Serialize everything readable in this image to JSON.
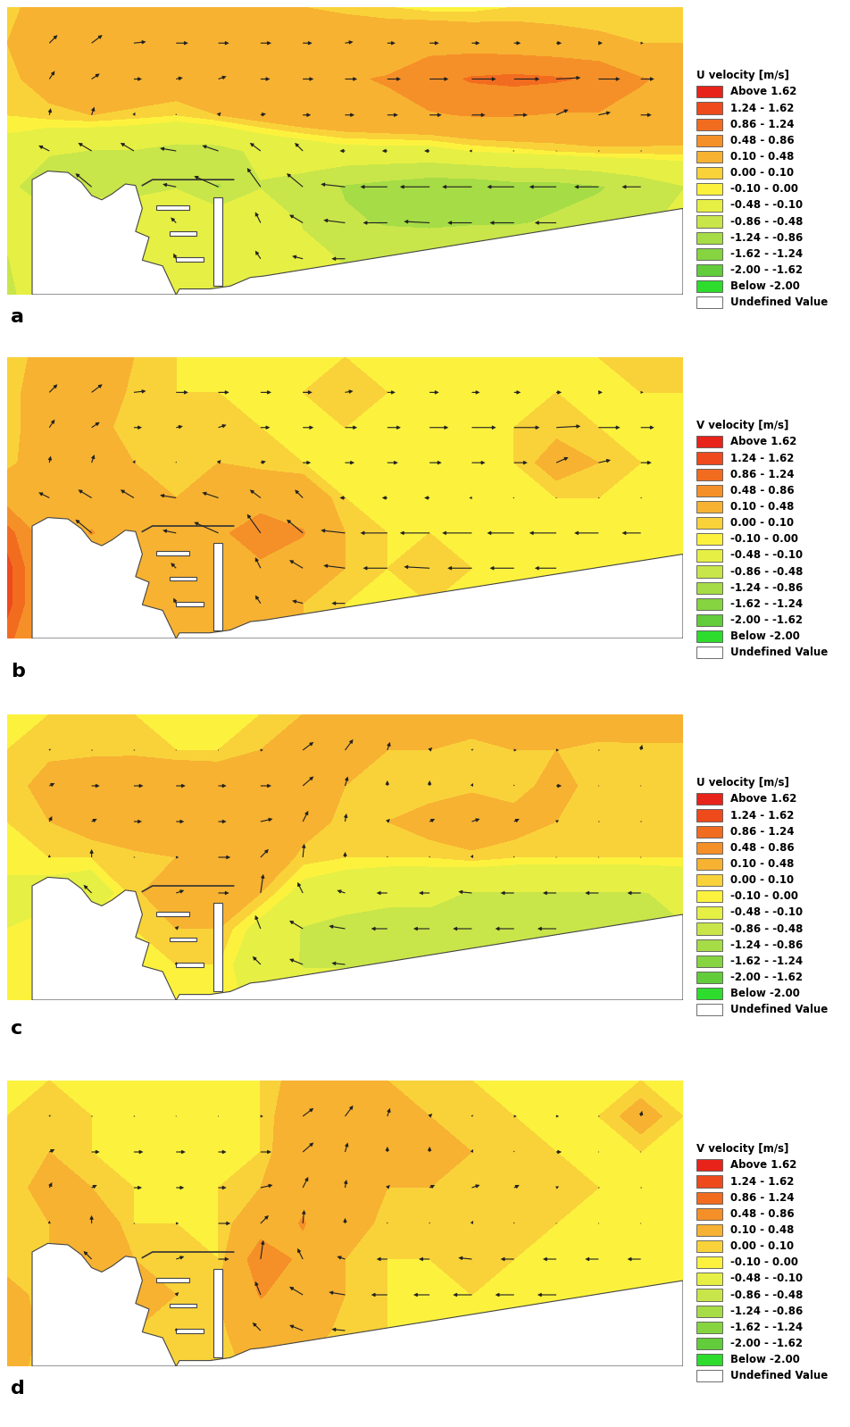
{
  "color_scale": {
    "levels": [
      -2.0,
      -1.62,
      -1.24,
      -0.86,
      -0.48,
      -0.1,
      0.0,
      0.1,
      0.48,
      0.86,
      1.24,
      1.62
    ],
    "labels": [
      "Above 1.62",
      "1.24 - 1.62",
      "0.86 - 1.24",
      "0.48 - 0.86",
      "0.10 - 0.48",
      "0.00 - 0.10",
      "-0.10 - 0.00",
      "-0.48 - -0.10",
      "-0.86 - -0.48",
      "-1.24 - -0.86",
      "-1.62 - -1.24",
      "-2.00 - -1.62",
      "Below -2.00"
    ],
    "colors": [
      "#e8231a",
      "#ee4a1c",
      "#f26c20",
      "#f59028",
      "#f7b232",
      "#f9d23a",
      "#fcf23e",
      "#e6ef44",
      "#c8e64a",
      "#a6dc46",
      "#86d440",
      "#62cc3a",
      "#2edc2e"
    ],
    "undefined_label": "Undefined Value",
    "undefined_color": "#ffffff"
  },
  "chart_data": [
    {
      "type": "contour",
      "panel_label": "a",
      "colorbar_title": "U velocity [m/s]",
      "tick_labels": false,
      "cells": [
        [
          0.05,
          0.2,
          0.3,
          0.35,
          0.35,
          0.3,
          0.25,
          0.1,
          0.05,
          0.0,
          -0.05,
          -0.05,
          0.0,
          0.0,
          0.0,
          0.05,
          0.05
        ],
        [
          0.1,
          0.3,
          0.4,
          0.45,
          0.45,
          0.4,
          0.4,
          0.35,
          0.3,
          0.3,
          0.35,
          0.3,
          0.25,
          0.2,
          0.15,
          0.1,
          0.1
        ],
        [
          0.05,
          0.2,
          0.3,
          0.3,
          0.25,
          0.3,
          0.35,
          0.4,
          0.45,
          0.5,
          0.7,
          0.9,
          0.95,
          0.9,
          0.8,
          0.5,
          0.4
        ],
        [
          0.0,
          0.05,
          0.1,
          0.05,
          0.0,
          0.1,
          0.2,
          0.3,
          0.35,
          0.4,
          0.45,
          0.5,
          0.5,
          0.45,
          0.45,
          0.4,
          0.35
        ],
        [
          -0.2,
          -0.4,
          -0.5,
          -0.5,
          -0.6,
          -0.6,
          -0.4,
          -0.3,
          -0.2,
          -0.2,
          -0.2,
          -0.1,
          -0.05,
          0.0,
          0.05,
          0.05,
          0.05
        ],
        [
          -0.3,
          -1.0,
          -0.6,
          -0.6,
          -0.5,
          -0.9,
          -0.5,
          -0.6,
          -0.9,
          -1.0,
          -1.1,
          -1.1,
          -1.0,
          -1.0,
          -0.9,
          -0.7,
          -0.5
        ],
        [
          -0.4,
          -0.2,
          -0.2,
          -0.2,
          -0.2,
          -0.15,
          -0.2,
          -0.5,
          -0.8,
          -0.9,
          -0.95,
          -0.9,
          -0.9,
          -0.8,
          -0.7,
          -0.6,
          -0.3
        ],
        [
          -0.5,
          -0.1,
          -0.1,
          -0.1,
          -0.1,
          -0.1,
          -0.2,
          -0.4,
          -0.5,
          -0.5,
          -0.4,
          -0.4,
          -0.3,
          -0.3,
          -0.3,
          -0.3,
          -0.3
        ],
        [
          -0.6,
          -0.1,
          -0.1,
          -0.1,
          -0.1,
          -0.1,
          -0.1,
          -0.3,
          -0.4,
          -0.4,
          -0.3,
          -0.3,
          -0.3,
          -0.3,
          -0.3,
          -0.3,
          -0.3
        ]
      ]
    },
    {
      "type": "contour",
      "panel_label": "b",
      "colorbar_title": "V velocity [m/s]",
      "tick_labels": false,
      "cells": [
        [
          0.0,
          0.2,
          0.4,
          0.1,
          0.0,
          0.0,
          0.0,
          0.0,
          0.0,
          0.0,
          0.0,
          0.0,
          0.0,
          0.0,
          0.0,
          0.05,
          0.05
        ],
        [
          0.0,
          0.3,
          0.3,
          0.05,
          0.0,
          0.0,
          0.0,
          0.0,
          0.05,
          0.0,
          0.0,
          0.0,
          0.0,
          0.0,
          0.0,
          0.0,
          0.0
        ],
        [
          0.0,
          0.3,
          0.2,
          0.0,
          0.05,
          0.1,
          0.0,
          0.0,
          0.0,
          0.0,
          0.0,
          0.0,
          0.0,
          0.05,
          0.0,
          0.0,
          0.0
        ],
        [
          0.05,
          0.25,
          0.3,
          0.1,
          0.05,
          0.1,
          0.05,
          0.0,
          0.0,
          0.0,
          0.0,
          0.0,
          0.0,
          0.2,
          0.1,
          0.0,
          0.0
        ],
        [
          0.3,
          0.2,
          0.3,
          0.3,
          0.1,
          0.2,
          0.3,
          0.3,
          0.0,
          0.0,
          0.0,
          0.0,
          0.0,
          0.0,
          0.0,
          0.0,
          0.0
        ],
        [
          1.0,
          0.2,
          0.5,
          0.2,
          0.1,
          0.4,
          0.7,
          0.5,
          0.1,
          0.0,
          0.0,
          0.0,
          0.0,
          0.0,
          0.0,
          0.0,
          0.0
        ],
        [
          1.4,
          0.1,
          0.1,
          0.1,
          0.2,
          0.3,
          0.4,
          0.3,
          0.1,
          0.0,
          0.05,
          0.0,
          0.0,
          0.0,
          0.0,
          0.0,
          0.0
        ],
        [
          1.4,
          0.1,
          0.1,
          0.1,
          0.2,
          0.4,
          0.3,
          0.1,
          0.0,
          0.0,
          0.0,
          0.0,
          0.0,
          0.0,
          0.0,
          0.0,
          0.0
        ],
        [
          1.0,
          0.1,
          0.1,
          0.1,
          0.1,
          0.3,
          0.2,
          0.1,
          0.0,
          0.0,
          0.0,
          0.0,
          0.0,
          0.0,
          0.0,
          0.0,
          0.0
        ]
      ]
    },
    {
      "type": "contour",
      "panel_label": "c",
      "colorbar_title": "U velocity [m/s]",
      "tick_labels": false,
      "cells": [
        [
          0.0,
          0.0,
          0.0,
          0.0,
          0.0,
          0.0,
          0.0,
          0.1,
          0.3,
          0.3,
          0.25,
          0.2,
          0.2,
          0.2,
          0.25,
          0.3,
          0.3
        ],
        [
          0.0,
          0.05,
          0.05,
          0.05,
          0.0,
          0.0,
          0.1,
          0.4,
          0.3,
          0.1,
          0.1,
          0.05,
          0.1,
          0.1,
          0.05,
          0.05,
          0.05
        ],
        [
          0.0,
          0.2,
          0.3,
          0.35,
          0.35,
          0.3,
          0.4,
          0.4,
          0.1,
          0.0,
          0.0,
          0.05,
          0.0,
          0.2,
          0.0,
          0.0,
          0.0
        ],
        [
          0.0,
          0.1,
          0.2,
          0.3,
          0.3,
          0.3,
          0.45,
          0.2,
          0.05,
          0.1,
          0.2,
          0.3,
          0.2,
          0.1,
          0.05,
          0.05,
          0.05
        ],
        [
          0.0,
          0.0,
          0.0,
          0.05,
          0.1,
          0.45,
          0.3,
          0.05,
          0.0,
          0.0,
          0.0,
          0.05,
          0.0,
          0.0,
          0.0,
          0.0,
          0.0
        ],
        [
          -0.2,
          -0.2,
          -0.3,
          0.05,
          0.3,
          0.4,
          0.1,
          -0.2,
          -0.3,
          -0.4,
          -0.4,
          -0.5,
          -0.5,
          -0.5,
          -0.5,
          -0.5,
          -0.4
        ],
        [
          -0.1,
          0.0,
          0.0,
          0.0,
          0.1,
          0.1,
          -0.2,
          -0.5,
          -0.6,
          -0.6,
          -0.6,
          -0.7,
          -0.7,
          -0.7,
          -0.6,
          -0.6,
          -0.5
        ],
        [
          -0.1,
          0.0,
          0.0,
          0.0,
          0.0,
          0.0,
          -0.3,
          -0.5,
          -0.5,
          -0.5,
          -0.5,
          -0.5,
          -0.5,
          -0.5,
          -0.4,
          -0.3,
          -0.3
        ],
        [
          -0.1,
          0.0,
          0.0,
          0.0,
          0.0,
          0.0,
          -0.2,
          -0.3,
          -0.3,
          -0.3,
          -0.3,
          -0.3,
          -0.3,
          -0.3,
          -0.3,
          -0.3,
          -0.3
        ]
      ]
    },
    {
      "type": "contour",
      "panel_label": "d",
      "colorbar_title": "V velocity [m/s]",
      "tick_labels": false,
      "cells": [
        [
          0.0,
          0.0,
          0.0,
          0.0,
          0.0,
          0.0,
          0.0,
          0.2,
          0.4,
          0.1,
          0.0,
          0.0,
          0.0,
          0.0,
          0.0,
          0.0,
          0.0
        ],
        [
          0.0,
          0.05,
          0.0,
          0.0,
          0.0,
          0.0,
          0.0,
          0.3,
          0.4,
          0.3,
          0.1,
          0.05,
          0.0,
          0.0,
          0.0,
          0.2,
          0.0
        ],
        [
          0.0,
          0.1,
          0.0,
          0.0,
          0.0,
          0.0,
          0.0,
          0.35,
          0.35,
          0.2,
          0.2,
          0.1,
          0.05,
          0.0,
          0.0,
          0.0,
          0.0
        ],
        [
          0.0,
          0.2,
          0.1,
          0.0,
          0.0,
          0.0,
          0.1,
          0.4,
          0.3,
          0.1,
          0.1,
          0.1,
          0.1,
          0.05,
          0.0,
          0.0,
          0.0
        ],
        [
          0.0,
          0.1,
          0.3,
          0.0,
          0.0,
          0.0,
          0.3,
          0.5,
          0.2,
          0.05,
          0.05,
          0.1,
          0.05,
          0.0,
          0.0,
          0.0,
          0.0
        ],
        [
          0.0,
          0.1,
          0.3,
          0.1,
          0.1,
          0.0,
          0.7,
          0.4,
          0.1,
          0.0,
          0.0,
          0.05,
          0.0,
          0.0,
          0.0,
          0.0,
          0.0
        ],
        [
          0.2,
          0.0,
          0.0,
          0.2,
          0.1,
          0.1,
          0.5,
          0.3,
          0.1,
          0.0,
          0.0,
          0.0,
          0.0,
          0.0,
          0.0,
          0.0,
          0.0
        ],
        [
          0.3,
          0.0,
          0.0,
          0.1,
          0.1,
          0.05,
          0.3,
          0.2,
          0.05,
          0.0,
          0.0,
          0.0,
          0.0,
          0.0,
          0.0,
          0.0,
          0.0
        ],
        [
          0.2,
          0.0,
          0.0,
          0.0,
          0.0,
          0.0,
          0.2,
          0.1,
          0.0,
          0.0,
          0.0,
          0.0,
          0.0,
          0.0,
          0.0,
          0.0,
          0.0
        ]
      ]
    }
  ]
}
